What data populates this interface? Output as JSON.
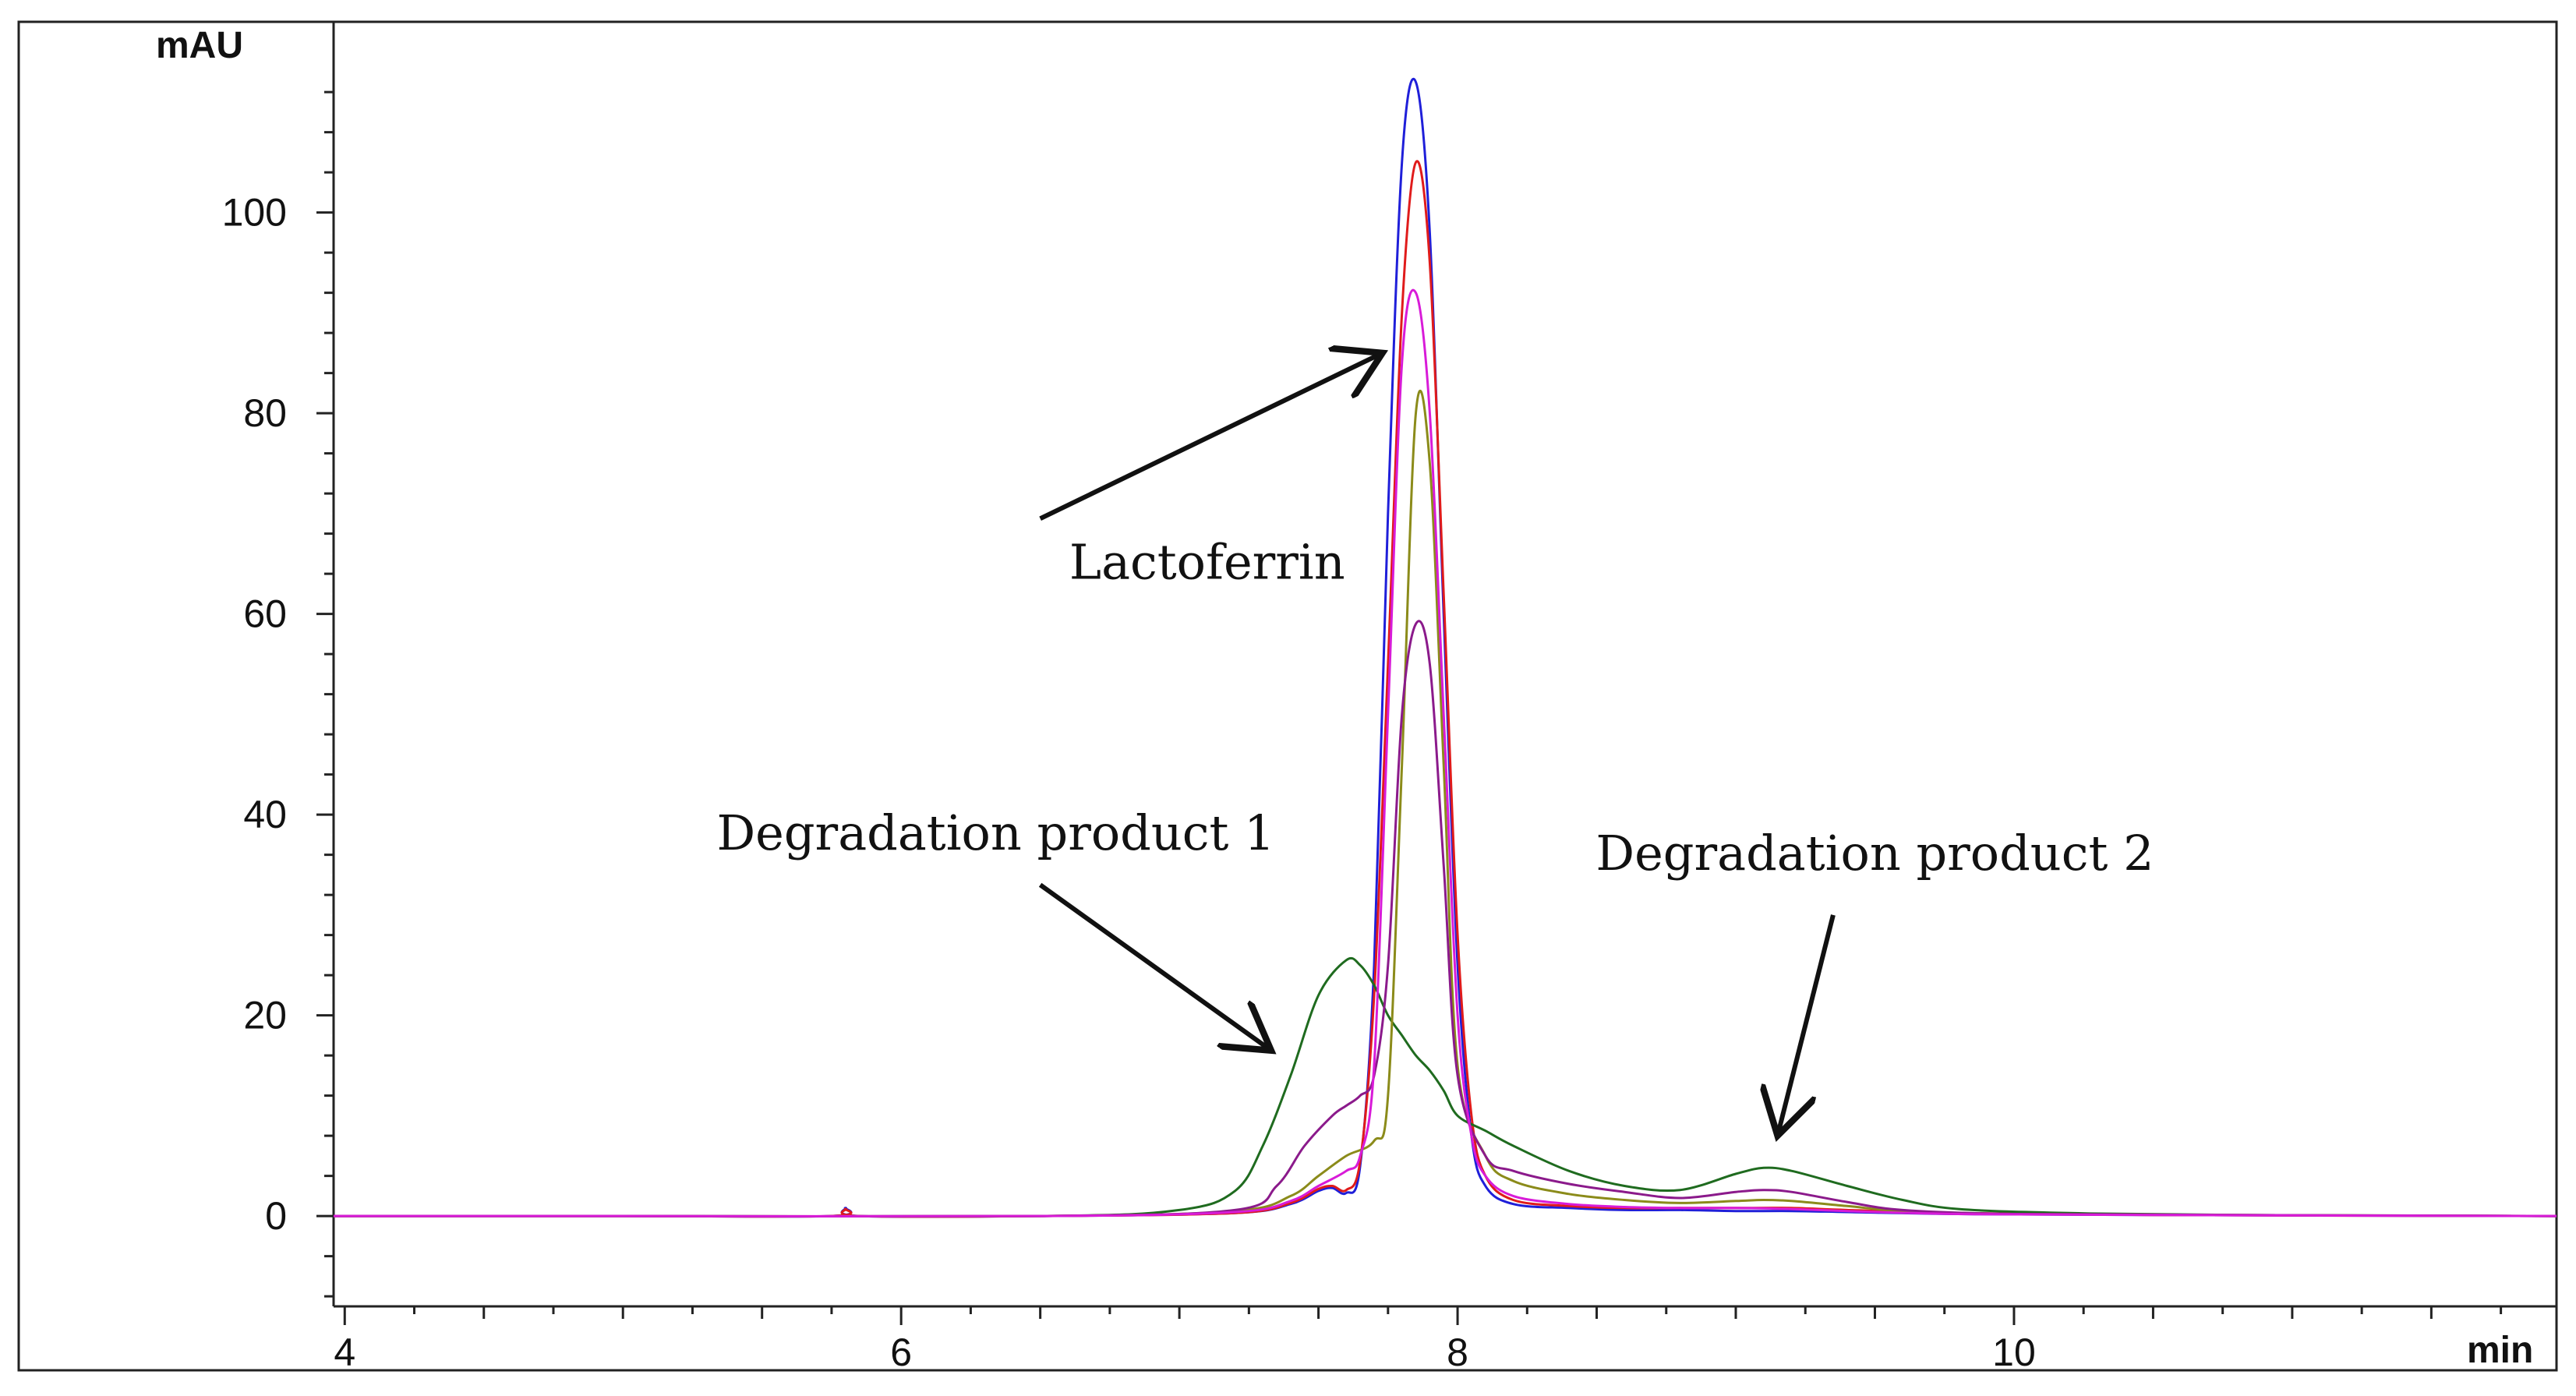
{
  "chart_data": {
    "type": "line",
    "title": "",
    "xlabel": "min",
    "ylabel": "mAU",
    "xlim": [
      3.96,
      11.95
    ],
    "ylim": [
      -9,
      119
    ],
    "x_ticks": [
      4,
      6,
      8,
      10
    ],
    "y_ticks": [
      0,
      20,
      40,
      60,
      80,
      100
    ],
    "grid": false,
    "series": [
      {
        "name": "blue trace",
        "color": "#1f1fd9",
        "x": [
          3.96,
          5.0,
          5.75,
          5.8,
          5.85,
          6.5,
          7.2,
          7.4,
          7.5,
          7.55,
          7.6,
          7.65,
          7.7,
          7.75,
          7.8,
          7.85,
          7.9,
          7.95,
          8.0,
          8.05,
          8.1,
          8.2,
          8.4,
          8.6,
          8.8,
          9.0,
          9.2,
          9.4,
          9.8,
          10.5,
          11.95
        ],
        "y": [
          0,
          0,
          0,
          0.8,
          0,
          0,
          0.3,
          1.2,
          2.5,
          2.8,
          2.3,
          5,
          25,
          70,
          105,
          113,
          98,
          60,
          25,
          8,
          3,
          1.2,
          0.8,
          0.6,
          0.6,
          0.5,
          0.5,
          0.4,
          0.2,
          0.1,
          0
        ]
      },
      {
        "name": "red trace",
        "color": "#e01b1b",
        "x": [
          3.96,
          5.0,
          5.75,
          5.8,
          5.85,
          6.5,
          7.2,
          7.4,
          7.5,
          7.55,
          7.6,
          7.65,
          7.7,
          7.75,
          7.8,
          7.85,
          7.9,
          7.95,
          8.0,
          8.05,
          8.1,
          8.2,
          8.4,
          8.6,
          8.8,
          9.0,
          9.2,
          9.4,
          9.8,
          10.5,
          11.95
        ],
        "y": [
          0,
          0,
          0,
          0.7,
          0,
          0,
          0.3,
          1.3,
          2.7,
          3.0,
          2.6,
          5.5,
          22,
          55,
          90,
          105,
          95,
          62,
          28,
          10,
          4,
          1.6,
          1.0,
          0.8,
          0.8,
          0.8,
          0.8,
          0.6,
          0.3,
          0.1,
          0
        ]
      },
      {
        "name": "dark green trace",
        "color": "#1f6b1f",
        "x": [
          3.96,
          5.0,
          6.5,
          7.0,
          7.2,
          7.3,
          7.4,
          7.5,
          7.6,
          7.65,
          7.7,
          7.75,
          7.8,
          7.85,
          7.9,
          7.95,
          8.0,
          8.1,
          8.2,
          8.4,
          8.6,
          8.8,
          9.0,
          9.1,
          9.2,
          9.4,
          9.6,
          9.8,
          10.2,
          10.8,
          11.95
        ],
        "y": [
          0,
          0,
          0,
          0.6,
          2.5,
          7,
          14,
          22,
          25.5,
          25,
          23,
          20,
          18,
          16,
          14.5,
          12.5,
          10,
          8.5,
          7,
          4.5,
          3,
          2.6,
          4.2,
          4.8,
          4.5,
          3,
          1.6,
          0.7,
          0.3,
          0.1,
          0
        ]
      },
      {
        "name": "olive trace",
        "color": "#8b8b1a",
        "x": [
          3.96,
          5.0,
          6.5,
          7.2,
          7.4,
          7.5,
          7.6,
          7.7,
          7.75,
          7.8,
          7.85,
          7.9,
          7.95,
          8.0,
          8.1,
          8.2,
          8.4,
          8.6,
          8.8,
          9.0,
          9.1,
          9.2,
          9.4,
          9.6,
          10.0,
          10.8,
          11.95
        ],
        "y": [
          0,
          0,
          0,
          0.5,
          2,
          4,
          6,
          7.5,
          12,
          45,
          80,
          75,
          45,
          15,
          6,
          3.5,
          2.2,
          1.6,
          1.3,
          1.5,
          1.6,
          1.5,
          1.0,
          0.5,
          0.2,
          0.1,
          0
        ]
      },
      {
        "name": "purple trace",
        "color": "#8b1a8b",
        "x": [
          3.96,
          5.0,
          6.5,
          7.2,
          7.35,
          7.45,
          7.55,
          7.6,
          7.65,
          7.7,
          7.75,
          7.8,
          7.85,
          7.9,
          7.95,
          8.0,
          8.1,
          8.2,
          8.4,
          8.6,
          8.8,
          9.0,
          9.1,
          9.2,
          9.4,
          9.6,
          10.0,
          10.8,
          11.95
        ],
        "y": [
          0,
          0,
          0,
          0.6,
          3,
          7,
          10,
          11,
          12,
          14,
          25,
          50,
          59,
          55,
          35,
          14,
          6,
          4.5,
          3.2,
          2.4,
          1.8,
          2.4,
          2.6,
          2.4,
          1.4,
          0.6,
          0.2,
          0.1,
          0
        ]
      },
      {
        "name": "magenta trace",
        "color": "#d81bd8",
        "x": [
          3.96,
          5.0,
          6.5,
          7.2,
          7.4,
          7.5,
          7.6,
          7.65,
          7.7,
          7.75,
          7.8,
          7.85,
          7.9,
          7.95,
          8.0,
          8.05,
          8.1,
          8.2,
          8.4,
          8.6,
          8.8,
          9.0,
          9.2,
          9.4,
          9.8,
          10.5,
          11.95
        ],
        "y": [
          0,
          0,
          0,
          0.4,
          1.5,
          3,
          4.5,
          6,
          15,
          50,
          85,
          92,
          80,
          50,
          20,
          8,
          4,
          2.0,
          1.2,
          0.9,
          0.8,
          0.8,
          0.7,
          0.5,
          0.2,
          0.1,
          0
        ]
      }
    ],
    "annotations": [
      {
        "text": "Lactoferrin",
        "x": 7.1,
        "y": 63.5,
        "arrow_to": [
          7.73,
          86
        ],
        "arrow_from": [
          6.5,
          69.5
        ]
      },
      {
        "text": "Degradation product 1",
        "x": 6.34,
        "y": 36.5,
        "arrow_to": [
          7.33,
          16.5
        ],
        "arrow_from": [
          6.5,
          33
        ]
      },
      {
        "text": "Degradation product 2",
        "x": 9.5,
        "y": 34.5,
        "arrow_to": [
          9.15,
          8
        ],
        "arrow_from": [
          9.35,
          30
        ]
      }
    ]
  }
}
